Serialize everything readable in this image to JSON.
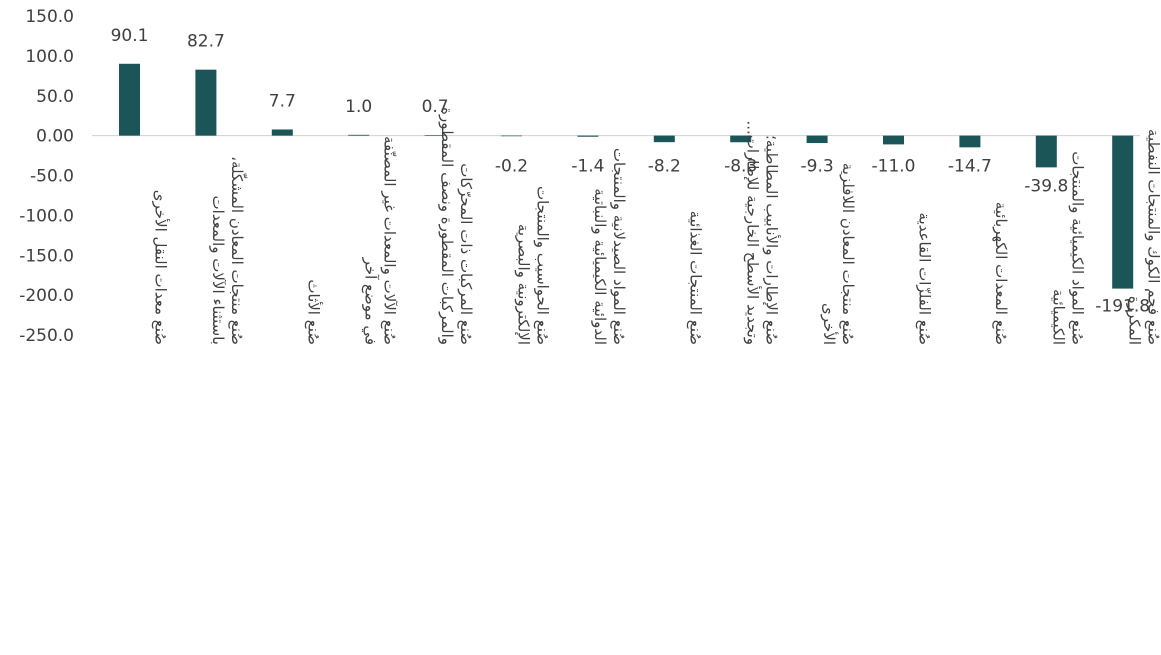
{
  "chart_data": {
    "type": "bar",
    "title": "",
    "xlabel": "",
    "ylabel": "",
    "ylim": [
      -250,
      150
    ],
    "yticks": [
      "150.0",
      "100.0",
      "50.0",
      "0.00",
      "-50.0",
      "-100.0",
      "-150.0",
      "-200.0",
      "-250.0"
    ],
    "grid": false,
    "legend": "none",
    "bar_color": "#1b5557",
    "categories": [
      [
        "صُنع معدات النقل الأخرى"
      ],
      [
        "صُنع منتجات المعادن المشكّلة،",
        "باستثناء الآلات والمعدات"
      ],
      [
        "صُنع الأثاث"
      ],
      [
        "صُنع الآلات والمعدات غير المصنّفة",
        "في موضع آخر"
      ],
      [
        "صُنع المركبات ذات المحرّكات",
        "والمركبات المقطورة ونصف المقطورة"
      ],
      [
        "صُنع الحواسيب والمنتجات",
        "الإلكترونية والبصرية"
      ],
      [
        "صُنع المواد الصيدلانية والمنتجات",
        "الدوائية الكيميائية والنباتية"
      ],
      [
        "صُنع المنتجات الغذائية"
      ],
      [
        "صُنع الإطارات والأنابيب المطاطية؛",
        "وتجديد الأسطح الخارجية للإطارات..."
      ],
      [
        "صُنع منتجات المعادن اللافلزية",
        "الأخرى"
      ],
      [
        "صُنع الفلزّات القاعدية"
      ],
      [
        "صُنع المعدات الكهربائية"
      ],
      [
        "صُنع المواد الكيميائية والمنتجات",
        "الكيميائية"
      ],
      [
        "صُنع فحم الكوك والمنتجات النفطية",
        "المكررة"
      ]
    ],
    "values": [
      90.1,
      82.7,
      7.7,
      1.0,
      0.7,
      -0.2,
      -1.4,
      -8.2,
      -8.3,
      -9.3,
      -11.0,
      -14.7,
      -39.8,
      -191.8
    ],
    "data_labels": [
      "90.1",
      "82.7",
      "7.7",
      "1.0",
      "0.7",
      "-0.2",
      "-1.4",
      "-8.2",
      "-8.3",
      "-9.3",
      "-11.0",
      "-14.7",
      "-39.8",
      "-191.8"
    ]
  }
}
